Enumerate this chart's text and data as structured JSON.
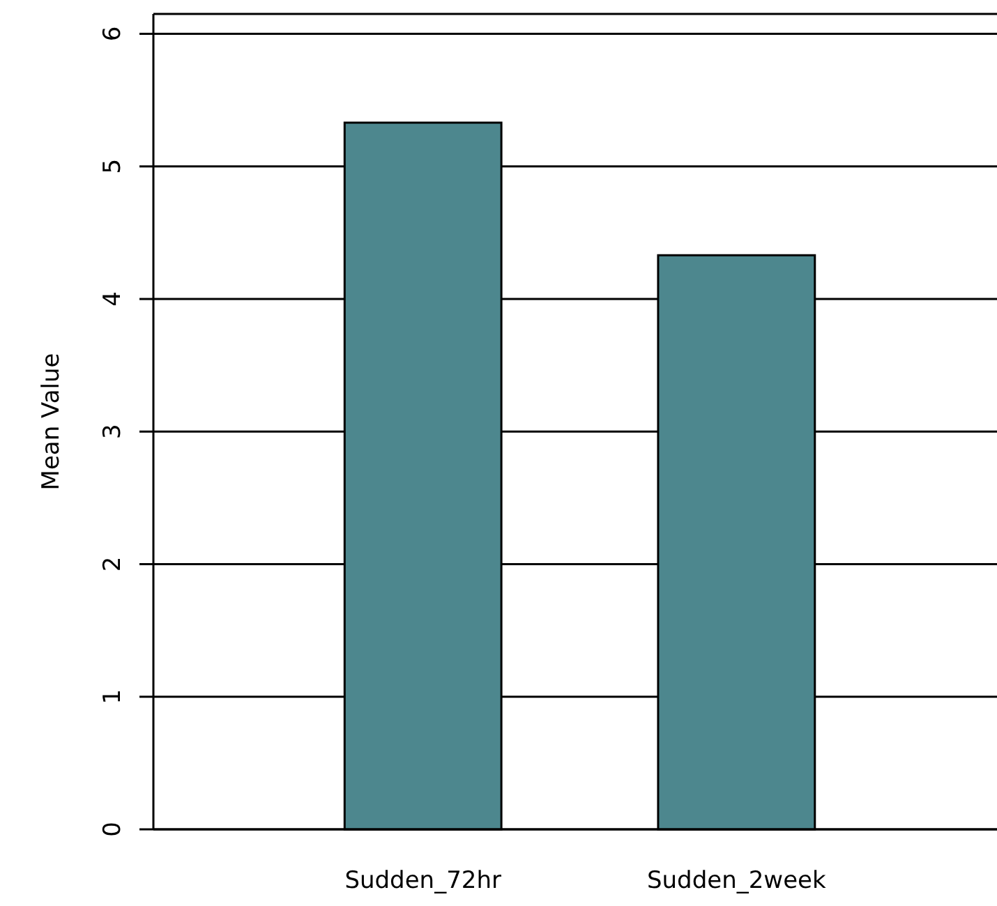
{
  "chart_data": {
    "type": "bar",
    "ylabel": "Mean Value",
    "categories": [
      "Sudden_72hr",
      "Sudden_2week"
    ],
    "values": [
      5.33,
      4.33
    ],
    "color": "#4d878e",
    "ylim": [
      0,
      6.15
    ],
    "yticks": [
      0,
      1,
      2,
      3,
      4,
      5,
      6
    ],
    "grid": "y"
  }
}
